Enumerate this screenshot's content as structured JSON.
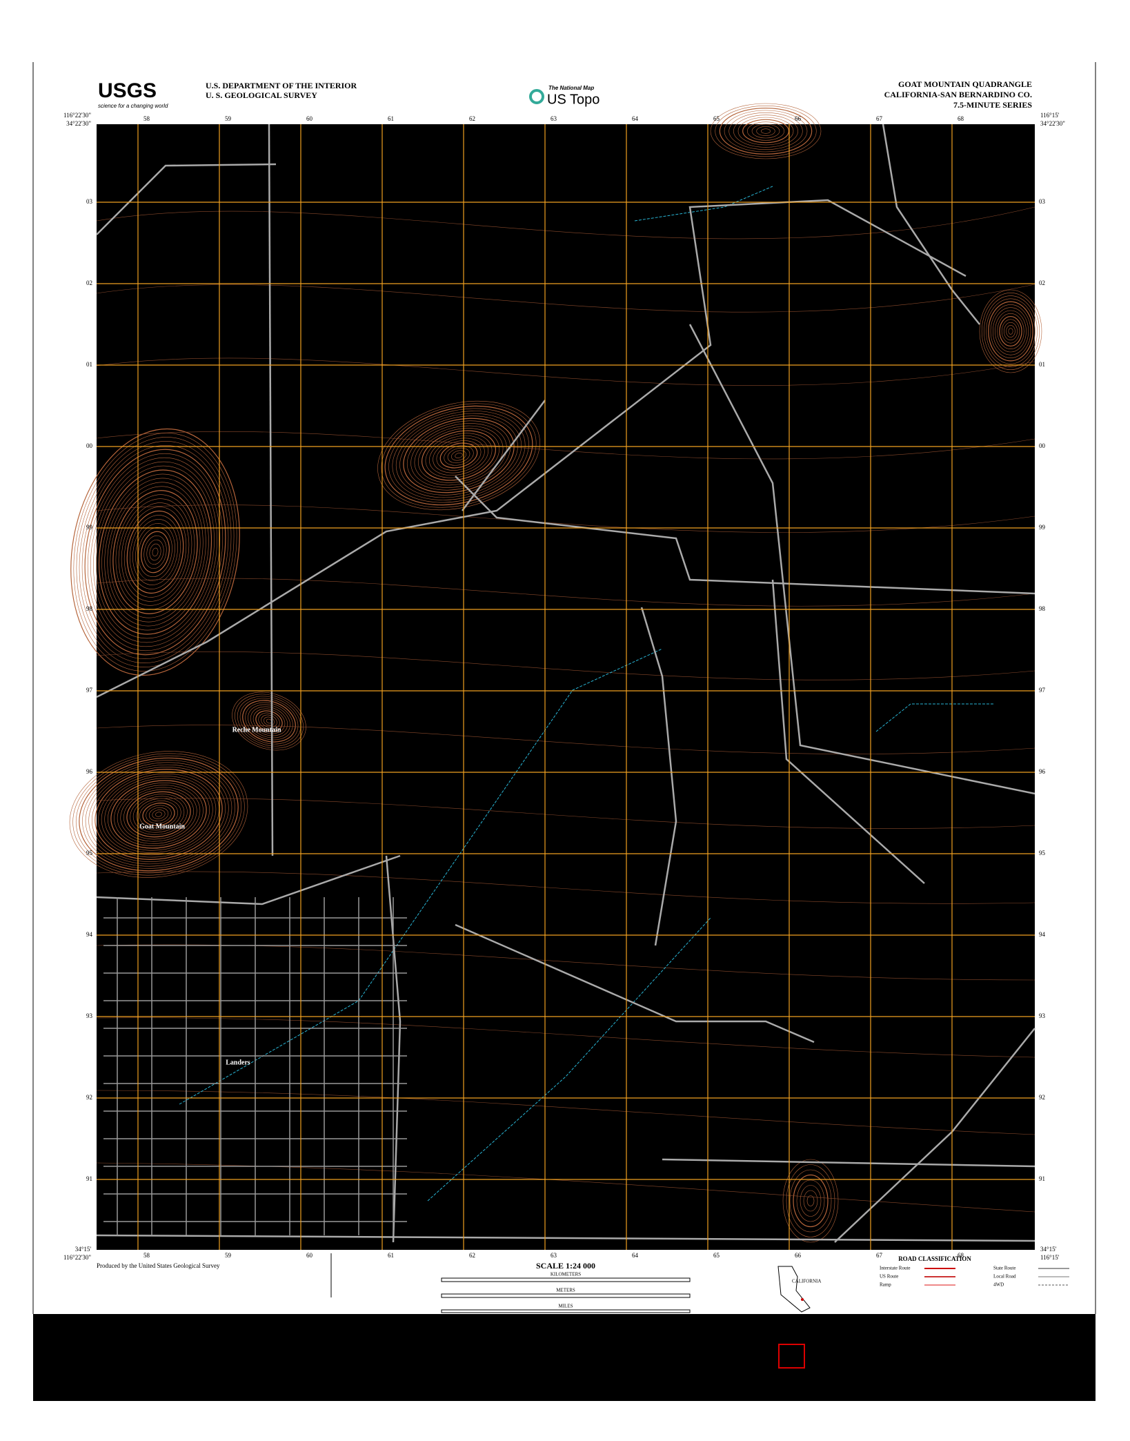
{
  "header": {
    "usgs": "USGS",
    "usgs_tagline": "science for a changing world",
    "agency": "U.S. DEPARTMENT OF THE INTERIOR",
    "survey": "U. S. GEOLOGICAL SURVEY",
    "national_map": "The National Map",
    "us_topo": "US Topo",
    "quadrangle": "GOAT MOUNTAIN QUADRANGLE",
    "county": "CALIFORNIA-SAN BERNARDINO CO.",
    "series": "7.5-MINUTE SERIES"
  },
  "corners": {
    "nw_lon": "116°22'30\"",
    "nw_lat": "34°22'30\"",
    "ne_lon": "116°15'",
    "ne_lat": "34°22'30\"",
    "sw_lon": "116°22'30\"",
    "sw_lat": "34°15'",
    "se_lon": "116°15'",
    "se_lat": "34°15'"
  },
  "eastings": [
    "58",
    "59",
    "60",
    "61",
    "62",
    "63",
    "64",
    "65",
    "66",
    "67",
    "68"
  ],
  "northings": [
    "03",
    "02",
    "01",
    "00",
    "99",
    "98",
    "97",
    "96",
    "95",
    "94",
    "93",
    "92",
    "91"
  ],
  "places": [
    "Reche Mountain",
    "Goat Mountain",
    "Landers"
  ],
  "footer": {
    "producer": "Produced by the United States Geological Survey",
    "scale": "SCALE 1:24 000",
    "units": [
      "KILOMETERS",
      "METERS",
      "MILES"
    ],
    "state": "CALIFORNIA",
    "road_title": "ROAD CLASSIFICATION",
    "roads": [
      "Interstate Route",
      "US Route",
      "Ramp",
      "State Route",
      "Local Road",
      "4WD"
    ]
  }
}
